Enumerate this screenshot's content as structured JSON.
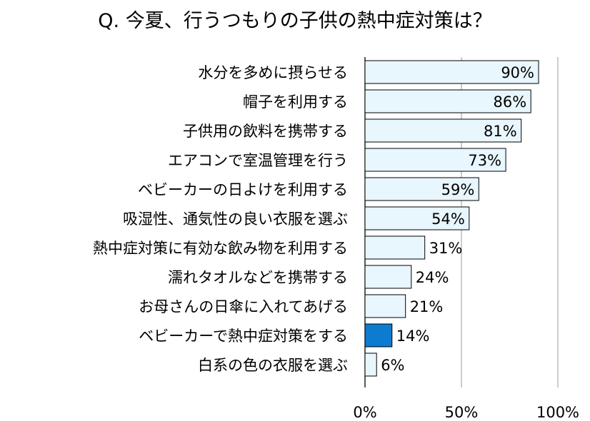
{
  "chart_data": {
    "type": "bar",
    "orientation": "horizontal",
    "title": "Q. 今夏、行うつもりの子供の熱中症対策は？",
    "categories": [
      "水分を多めに摂らせる",
      "帽子を利用する",
      "子供用の飲料を携帯する",
      "エアコンで室温管理を行う",
      "ベビーカーの日よけを利用する",
      "吸湿性、通気性の良い衣服を選ぶ",
      "熱中症対策に有効な飲み物を利用する",
      "濡れタオルなどを携帯する",
      "お母さんの日傘に入れてあげる",
      "ベビーカーで熱中症対策をする",
      "白系の色の衣服を選ぶ"
    ],
    "values": [
      90,
      86,
      81,
      73,
      59,
      54,
      31,
      24,
      21,
      14,
      6
    ],
    "value_labels": [
      "90%",
      "86%",
      "81%",
      "73%",
      "59%",
      "54%",
      "31%",
      "24%",
      "21%",
      "14%",
      "6%"
    ],
    "highlight_index": 9,
    "xlim": [
      0,
      100
    ],
    "xticks": [
      0,
      50,
      100
    ],
    "xtick_labels": [
      "0%",
      "50%",
      "100%"
    ],
    "grid": true,
    "legend": "none",
    "colors": {
      "bar_fill": "#e8f6fd",
      "bar_stroke": "#000000",
      "highlight_fill": "#0d7bd0",
      "gridline": "#9a9a9a"
    }
  }
}
